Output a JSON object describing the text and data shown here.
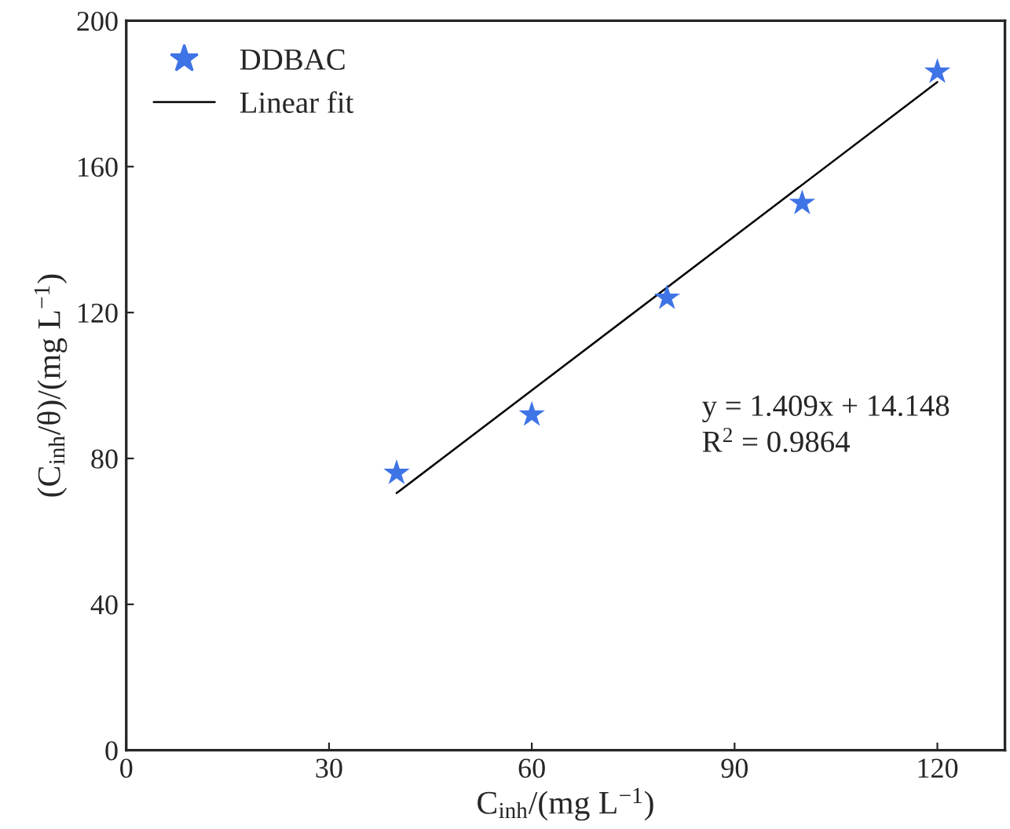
{
  "chart_data": {
    "type": "scatter",
    "xlabel": "C$_{inh}$/(mg L$^{−1}$)",
    "ylabel": "(C$_{inh}$/θ)/(mg L$^{−1}$)",
    "series": [
      {
        "name": "DDBAC",
        "color": "#3f74e6",
        "marker": "star",
        "x": [
          40,
          60,
          80,
          100,
          120
        ],
        "values": [
          76,
          92,
          124,
          150,
          186
        ]
      },
      {
        "name": "Linear fit",
        "type": "line",
        "color": "#000000",
        "line_style": "solid",
        "marker": "none",
        "x": [
          40,
          120
        ],
        "values": [
          70.5,
          183.2
        ]
      }
    ],
    "annotations": [
      "y = 1.409x + 14.148\nR$^{2}$ = 0.9864"
    ],
    "xlim": [
      0,
      130
    ],
    "ylim": [
      0,
      200
    ],
    "xticks": [
      0,
      30,
      60,
      90,
      120
    ],
    "yticks": [
      0,
      40,
      80,
      120,
      160,
      200
    ],
    "grid": false,
    "legend": "top left"
  }
}
